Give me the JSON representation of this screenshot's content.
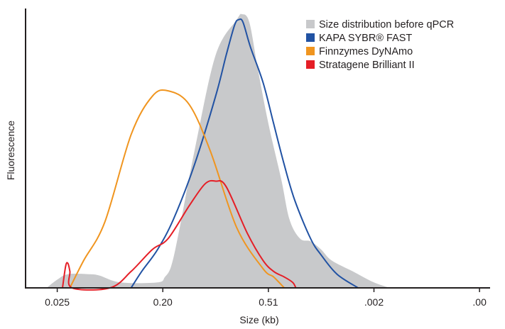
{
  "chart_data": {
    "type": "area",
    "xlabel": "Size (kb)",
    "ylabel": "Fluorescence",
    "x_tick_labels": [
      "0.025",
      "0.20",
      "0.51",
      ".002",
      ".00"
    ],
    "x_axis_positions": [
      0,
      1,
      2,
      3,
      4
    ],
    "xlim": [
      -0.3,
      4.1
    ],
    "ylim": [
      0,
      100
    ],
    "grid": false,
    "legend_position": "top-right",
    "series": [
      {
        "name": "Size distribution before qPCR",
        "style": "filled-area",
        "color": "#c8c9cb",
        "x": [
          -0.1,
          0.0,
          0.1,
          0.3,
          0.4,
          0.6,
          0.95,
          1.02,
          1.08,
          1.15,
          1.3,
          1.5,
          1.7,
          1.75,
          1.82,
          1.9,
          2.0,
          2.12,
          2.2,
          2.3,
          2.4,
          2.5,
          2.6,
          2.8,
          3.0,
          3.15
        ],
        "y": [
          0,
          3,
          5,
          5,
          4.5,
          2,
          2,
          4,
          8,
          20,
          50,
          85,
          98,
          100,
          97,
          80,
          60,
          40,
          25,
          18,
          17,
          14,
          10,
          6,
          2,
          0
        ]
      },
      {
        "name": "KAPA SYBR® FAST",
        "style": "line",
        "color": "#2152a3",
        "x": [
          0.7,
          0.8,
          0.95,
          1.1,
          1.3,
          1.5,
          1.6,
          1.68,
          1.72,
          1.76,
          1.83,
          1.95,
          2.05,
          2.15,
          2.25,
          2.4,
          2.5,
          2.65,
          2.85
        ],
        "y": [
          0,
          6,
          14,
          25,
          45,
          70,
          85,
          96,
          98,
          97,
          88,
          75,
          60,
          45,
          32,
          18,
          12,
          5,
          0
        ]
      },
      {
        "name": "Finnzymes DyNAmo",
        "style": "line",
        "color": "#f0951f",
        "x": [
          0.12,
          0.25,
          0.45,
          0.7,
          0.9,
          1.05,
          1.25,
          1.45,
          1.7,
          1.95,
          2.05,
          2.15
        ],
        "y": [
          0,
          10,
          24,
          56,
          70,
          72,
          67,
          50,
          22,
          7,
          4,
          0
        ]
      },
      {
        "name": "Stratagene Brilliant II",
        "style": "line",
        "color": "#e51e26",
        "x": [
          0.05,
          0.08,
          0.1,
          0.12,
          0.14,
          0.5,
          0.7,
          0.9,
          1.05,
          1.25,
          1.4,
          1.5,
          1.6,
          1.8,
          1.95,
          2.05,
          2.15,
          2.23,
          2.26
        ],
        "y": [
          0,
          8,
          9,
          6,
          0,
          0,
          6,
          14,
          18,
          30,
          38,
          39,
          37,
          20,
          10,
          6,
          4,
          2,
          0
        ]
      }
    ]
  },
  "colors": {
    "axis": "#231f20",
    "text": "#231f20",
    "background": "#ffffff"
  }
}
